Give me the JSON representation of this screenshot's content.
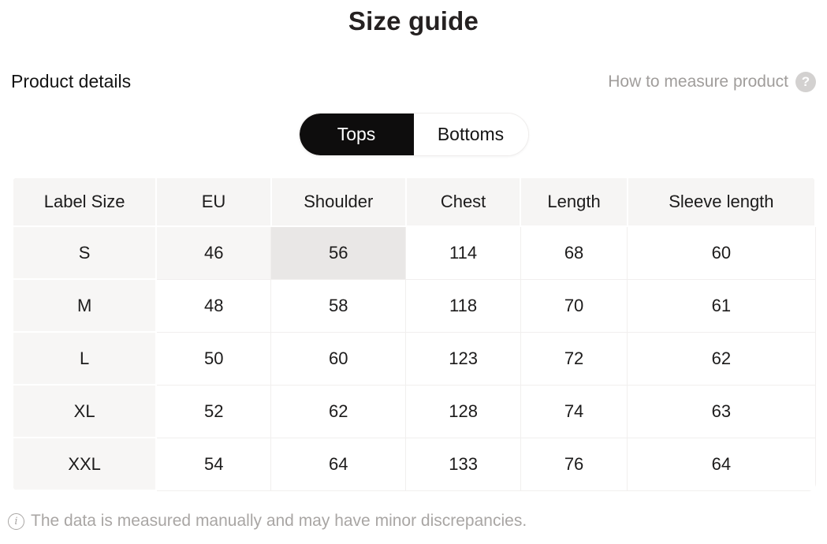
{
  "header": {
    "title": "Size guide",
    "section_title": "Product details",
    "measure_link_label": "How to measure product",
    "help_icon_glyph": "?"
  },
  "tabs": {
    "items": [
      {
        "label": "Tops",
        "active": true
      },
      {
        "label": "Bottoms",
        "active": false
      }
    ]
  },
  "size_table": {
    "columns": [
      "Label Size",
      "EU",
      "Shoulder",
      "Chest",
      "Length",
      "Sleeve length"
    ],
    "rows": [
      {
        "label": "S",
        "values": [
          "46",
          "56",
          "114",
          "68",
          "60"
        ]
      },
      {
        "label": "M",
        "values": [
          "48",
          "58",
          "118",
          "70",
          "61"
        ]
      },
      {
        "label": "L",
        "values": [
          "50",
          "60",
          "123",
          "72",
          "62"
        ]
      },
      {
        "label": "XL",
        "values": [
          "52",
          "62",
          "128",
          "74",
          "63"
        ]
      },
      {
        "label": "XXL",
        "values": [
          "54",
          "64",
          "133",
          "76",
          "64"
        ]
      }
    ],
    "highlighted": {
      "row": "S",
      "column": "Shoulder"
    }
  },
  "footer": {
    "note": "The data is measured manually and may have minor discrepancies.",
    "info_icon_glyph": "i"
  },
  "colors": {
    "tab_active_bg": "#0e0d0d",
    "tab_active_text": "#ffffff",
    "table_header_bg": "#f6f5f4",
    "label_column_bg": "#f7f6f5",
    "highlight_row_bg": "#f7f6f5",
    "highlight_cell_bg": "#e9e7e6",
    "cell_border": "#f1efee",
    "muted_text": "#a9a6a4",
    "text": "#1c1b1b"
  }
}
